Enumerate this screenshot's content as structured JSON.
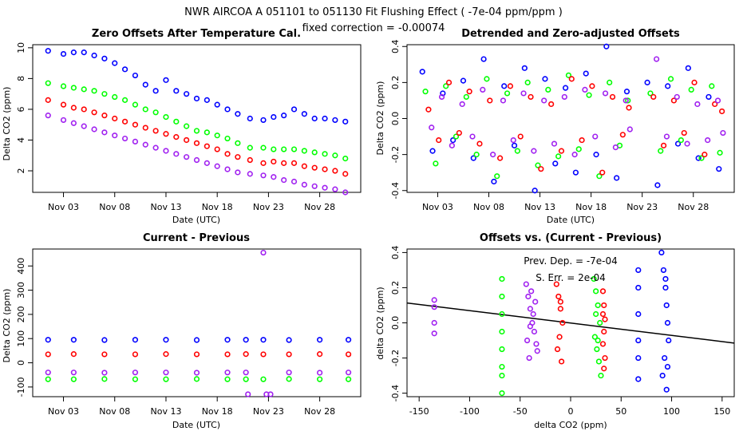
{
  "suptitle": "NWR   AIRCOA A   051101 to 051130   Fit Flushing Effect ( -7e-04 ppm/ppm )",
  "subtitle": "fixed correction = -0.00074",
  "series_names": [
    "blue",
    "green",
    "red",
    "purple"
  ],
  "colors": {
    "blue": "#0000ff",
    "green": "#00ff00",
    "red": "#ff0000",
    "purple": "#a020f0",
    "axis": "#000000",
    "fit": "#000000"
  },
  "chart_data": [
    {
      "id": "p1",
      "type": "scatter",
      "title": "Zero Offsets After Temperature Cal.",
      "xlabel": "Date (UTC)",
      "ylabel": "Delta CO2 (ppm)",
      "xlim": [
        0,
        32
      ],
      "ylim": [
        0.6,
        10.2
      ],
      "xticks": [
        {
          "v": 3,
          "label": "Nov 03"
        },
        {
          "v": 8,
          "label": "Nov 08"
        },
        {
          "v": 13,
          "label": "Nov 13"
        },
        {
          "v": 18,
          "label": "Nov 18"
        },
        {
          "v": 23,
          "label": "Nov 23"
        },
        {
          "v": 28,
          "label": "Nov 28"
        }
      ],
      "yticks": [
        {
          "v": 2,
          "label": "2"
        },
        {
          "v": 4,
          "label": "4"
        },
        {
          "v": 6,
          "label": "6"
        },
        {
          "v": 8,
          "label": "8"
        },
        {
          "v": 10,
          "label": "10"
        }
      ],
      "series": [
        {
          "name": "blue",
          "x": [
            1.5,
            3,
            4,
            5,
            6,
            7,
            8,
            9,
            10,
            11,
            12,
            13,
            14,
            15,
            16,
            17,
            18,
            19,
            20,
            21.2,
            22.5,
            23.5,
            24.5,
            25.5,
            26.5,
            27.5,
            28.5,
            29.5,
            30.5
          ],
          "y": [
            9.8,
            9.6,
            9.7,
            9.7,
            9.5,
            9.3,
            9.0,
            8.6,
            8.2,
            7.6,
            7.2,
            7.9,
            7.2,
            7.0,
            6.7,
            6.6,
            6.3,
            6.0,
            5.7,
            5.4,
            5.3,
            5.5,
            5.6,
            6.0,
            5.7,
            5.4,
            5.4,
            5.3,
            5.2
          ]
        },
        {
          "name": "green",
          "x": [
            1.5,
            3,
            4,
            5,
            6,
            7,
            8,
            9,
            10,
            11,
            12,
            13,
            14,
            15,
            16,
            17,
            18,
            19,
            20,
            21.2,
            22.5,
            23.5,
            24.5,
            25.5,
            26.5,
            27.5,
            28.5,
            29.5,
            30.5
          ],
          "y": [
            7.7,
            7.5,
            7.4,
            7.3,
            7.2,
            7.0,
            6.8,
            6.6,
            6.3,
            6.0,
            5.8,
            5.5,
            5.2,
            4.9,
            4.6,
            4.5,
            4.3,
            4.1,
            3.8,
            3.5,
            3.5,
            3.4,
            3.4,
            3.4,
            3.3,
            3.2,
            3.1,
            3.0,
            2.8
          ]
        },
        {
          "name": "red",
          "x": [
            1.5,
            3,
            4,
            5,
            6,
            7,
            8,
            9,
            10,
            11,
            12,
            13,
            14,
            15,
            16,
            17,
            18,
            19,
            20,
            21.2,
            22.5,
            23.5,
            24.5,
            25.5,
            26.5,
            27.5,
            28.5,
            29.5,
            30.5
          ],
          "y": [
            6.6,
            6.3,
            6.1,
            6.0,
            5.8,
            5.6,
            5.4,
            5.2,
            5.0,
            4.8,
            4.6,
            4.4,
            4.2,
            4.0,
            3.8,
            3.6,
            3.4,
            3.1,
            2.9,
            2.7,
            2.5,
            2.6,
            2.5,
            2.5,
            2.3,
            2.2,
            2.1,
            2.0,
            1.8
          ]
        },
        {
          "name": "purple",
          "x": [
            1.5,
            3,
            4,
            5,
            6,
            7,
            8,
            9,
            10,
            11,
            12,
            13,
            14,
            15,
            16,
            17,
            18,
            19,
            20,
            21.2,
            22.5,
            23.5,
            24.5,
            25.5,
            26.5,
            27.5,
            28.5,
            29.5,
            30.5
          ],
          "y": [
            5.6,
            5.3,
            5.1,
            4.9,
            4.7,
            4.5,
            4.3,
            4.1,
            3.9,
            3.7,
            3.5,
            3.3,
            3.1,
            2.9,
            2.7,
            2.5,
            2.3,
            2.1,
            1.9,
            1.8,
            1.7,
            1.6,
            1.4,
            1.3,
            1.1,
            1.0,
            0.9,
            0.8,
            0.6
          ]
        }
      ]
    },
    {
      "id": "p2",
      "type": "scatter",
      "title": "Detrended and Zero-adjusted Offsets",
      "xlabel": "Date (UTC)",
      "ylabel": "Delta CO2 (ppm)",
      "xlim": [
        0,
        32
      ],
      "ylim": [
        -0.41,
        0.41
      ],
      "xticks": [
        {
          "v": 3,
          "label": "Nov 03"
        },
        {
          "v": 8,
          "label": "Nov 08"
        },
        {
          "v": 13,
          "label": "Nov 13"
        },
        {
          "v": 18,
          "label": "Nov 18"
        },
        {
          "v": 23,
          "label": "Nov 23"
        },
        {
          "v": 28,
          "label": "Nov 28"
        }
      ],
      "yticks": [
        {
          "v": -0.4,
          "label": "-0.4"
        },
        {
          "v": -0.2,
          "label": "-0.2"
        },
        {
          "v": 0,
          "label": "0.0"
        },
        {
          "v": 0.2,
          "label": "0.2"
        },
        {
          "v": 0.4,
          "label": "0.4"
        }
      ],
      "series": [
        {
          "name": "blue",
          "x": [
            1.5,
            2.5,
            3.5,
            4.5,
            5.5,
            6.5,
            7.5,
            8.5,
            9.5,
            10.5,
            11.5,
            12.5,
            13.5,
            14.5,
            15.5,
            16.5,
            17.5,
            18.5,
            19.5,
            20.5,
            21.5,
            23.5,
            24.5,
            25.5,
            26.5,
            27.5,
            28.5,
            29.5,
            30.5
          ],
          "y": [
            0.26,
            -0.18,
            0.14,
            -0.12,
            0.21,
            -0.22,
            0.33,
            -0.35,
            0.18,
            -0.15,
            0.28,
            -0.4,
            0.22,
            -0.25,
            0.17,
            -0.3,
            0.25,
            -0.2,
            0.4,
            -0.33,
            0.15,
            0.2,
            -0.37,
            0.18,
            -0.14,
            0.28,
            -0.22,
            0.12,
            -0.28
          ]
        },
        {
          "name": "green",
          "x": [
            1.8,
            2.8,
            3.8,
            4.8,
            5.8,
            6.8,
            7.8,
            8.8,
            9.8,
            10.8,
            11.8,
            12.8,
            13.8,
            14.8,
            15.8,
            16.8,
            17.8,
            18.8,
            19.8,
            20.8,
            21.6,
            23.8,
            24.8,
            25.8,
            26.8,
            27.8,
            28.8,
            29.8,
            30.6
          ],
          "y": [
            0.15,
            -0.25,
            0.18,
            -0.1,
            0.12,
            -0.2,
            0.22,
            -0.32,
            0.14,
            -0.18,
            0.2,
            -0.26,
            0.16,
            -0.21,
            0.24,
            -0.17,
            0.13,
            -0.32,
            0.2,
            -0.15,
            0.1,
            0.14,
            -0.18,
            0.22,
            -0.12,
            0.16,
            -0.22,
            0.18,
            -0.19
          ]
        },
        {
          "name": "red",
          "x": [
            2.1,
            3.1,
            4.1,
            5.1,
            6.1,
            7.1,
            8.1,
            9.1,
            10.1,
            11.1,
            12.1,
            13.1,
            14.1,
            15.1,
            16.1,
            17.1,
            18.1,
            19.1,
            20.1,
            21.1,
            21.7,
            24.1,
            25.1,
            26.1,
            27.1,
            28.1,
            29.1,
            30.1,
            30.8
          ],
          "y": [
            0.05,
            -0.12,
            0.2,
            -0.08,
            0.15,
            -0.14,
            0.1,
            -0.22,
            0.18,
            -0.1,
            0.12,
            -0.28,
            0.08,
            -0.18,
            0.22,
            -0.12,
            0.18,
            -0.3,
            0.12,
            -0.09,
            0.06,
            0.12,
            -0.15,
            0.1,
            -0.08,
            0.2,
            -0.2,
            0.08,
            0.04
          ]
        },
        {
          "name": "purple",
          "x": [
            2.4,
            3.4,
            4.4,
            5.4,
            6.4,
            7.4,
            8.4,
            9.4,
            10.4,
            11.4,
            12.4,
            13.4,
            14.4,
            15.4,
            16.4,
            17.4,
            18.4,
            19.4,
            20.4,
            21.4,
            21.8,
            24.4,
            25.4,
            26.4,
            27.4,
            28.4,
            29.4,
            30.4,
            30.9
          ],
          "y": [
            -0.05,
            0.12,
            -0.15,
            0.08,
            -0.1,
            0.16,
            -0.2,
            0.1,
            -0.12,
            0.14,
            -0.18,
            0.1,
            -0.14,
            0.12,
            -0.2,
            0.16,
            -0.1,
            0.14,
            -0.16,
            0.1,
            -0.06,
            0.33,
            -0.1,
            0.12,
            -0.14,
            0.08,
            -0.12,
            0.1,
            -0.08
          ]
        }
      ]
    },
    {
      "id": "p3",
      "type": "scatter",
      "title": "Current - Previous",
      "xlabel": "Date (UTC)",
      "ylabel": "Delta CO2 (ppm)",
      "xlim": [
        0,
        32
      ],
      "ylim": [
        -140,
        470
      ],
      "xticks": [
        {
          "v": 3,
          "label": "Nov 03"
        },
        {
          "v": 8,
          "label": "Nov 08"
        },
        {
          "v": 13,
          "label": "Nov 13"
        },
        {
          "v": 18,
          "label": "Nov 18"
        },
        {
          "v": 23,
          "label": "Nov 23"
        },
        {
          "v": 28,
          "label": "Nov 28"
        }
      ],
      "yticks": [
        {
          "v": -100,
          "label": "-100"
        },
        {
          "v": 0,
          "label": "0"
        },
        {
          "v": 100,
          "label": "100"
        },
        {
          "v": 200,
          "label": "200"
        },
        {
          "v": 300,
          "label": "300"
        },
        {
          "v": 400,
          "label": "400"
        }
      ],
      "series": [
        {
          "name": "blue",
          "x": [
            1.5,
            4,
            7,
            10,
            13,
            16,
            19,
            20.8,
            22.5,
            25,
            28,
            30.8
          ],
          "y": [
            95,
            95,
            94,
            95,
            95,
            94,
            95,
            95,
            95,
            94,
            95,
            95
          ]
        },
        {
          "name": "green",
          "x": [
            1.5,
            4,
            7,
            10,
            13,
            16,
            19,
            20.8,
            22.5,
            25,
            28,
            30.8
          ],
          "y": [
            -68,
            -68,
            -67,
            -68,
            -68,
            -67,
            -68,
            -68,
            -68,
            -67,
            -68,
            -68
          ]
        },
        {
          "name": "red",
          "x": [
            1.5,
            4,
            7,
            10,
            13,
            16,
            19,
            20.8,
            22.5,
            25,
            28,
            30.8
          ],
          "y": [
            35,
            36,
            35,
            35,
            36,
            35,
            35,
            36,
            35,
            35,
            36,
            35
          ]
        },
        {
          "name": "purple",
          "x": [
            1.5,
            4,
            7,
            10,
            13,
            16,
            19,
            20.8,
            21,
            22.5,
            22.8,
            23.2,
            25,
            28,
            30.8
          ],
          "y": [
            -40,
            -40,
            -41,
            -40,
            -40,
            -41,
            -40,
            -40,
            -130,
            455,
            -130,
            -130,
            -40,
            -41,
            -40
          ]
        }
      ]
    },
    {
      "id": "p4",
      "type": "scatter",
      "title": "Offsets vs. (Current - Previous)",
      "xlabel": "delta CO2 (ppm)",
      "ylabel": "delta CO2 (ppm)",
      "xlim": [
        -162,
        162
      ],
      "ylim": [
        -0.42,
        0.42
      ],
      "xticks": [
        {
          "v": -150,
          "label": "-150"
        },
        {
          "v": -100,
          "label": "-100"
        },
        {
          "v": -50,
          "label": "-50"
        },
        {
          "v": 0,
          "label": "0"
        },
        {
          "v": 50,
          "label": "50"
        },
        {
          "v": 100,
          "label": "100"
        },
        {
          "v": 150,
          "label": "150"
        }
      ],
      "yticks": [
        {
          "v": -0.4,
          "label": "-0.4"
        },
        {
          "v": -0.2,
          "label": "-0.2"
        },
        {
          "v": 0,
          "label": "0.0"
        },
        {
          "v": 0.2,
          "label": "0.2"
        },
        {
          "v": 0.4,
          "label": "0.4"
        }
      ],
      "annotations": [
        "Prev. Dep. =  -7e-04",
        "S. Err. =  2e-04"
      ],
      "fit_line": {
        "x": [
          -162,
          162
        ],
        "y": [
          0.113,
          -0.115
        ],
        "slope": -0.0007
      },
      "series": [
        {
          "name": "blue",
          "x": [
            67,
            67,
            67,
            67,
            67,
            67,
            90,
            92,
            94,
            95,
            96,
            97,
            93,
            91,
            95,
            94,
            96
          ],
          "y": [
            0.3,
            0.2,
            0.05,
            -0.1,
            -0.2,
            -0.32,
            0.4,
            0.3,
            0.2,
            0.1,
            0.0,
            -0.1,
            -0.2,
            -0.3,
            -0.38,
            0.25,
            -0.25
          ]
        },
        {
          "name": "green",
          "x": [
            -68,
            -68,
            -68,
            -68,
            -68,
            -68,
            -68,
            -68,
            23,
            25,
            27,
            29,
            24,
            26,
            28,
            30,
            25,
            27
          ],
          "y": [
            0.25,
            0.15,
            0.05,
            -0.05,
            -0.15,
            -0.25,
            -0.3,
            -0.4,
            0.25,
            0.18,
            0.1,
            0.0,
            -0.08,
            -0.15,
            -0.22,
            -0.3,
            0.05,
            -0.1
          ]
        },
        {
          "name": "red",
          "x": [
            -14,
            -12,
            -10,
            -8,
            -11,
            -13,
            -9,
            -10,
            32,
            33,
            34,
            33,
            32,
            34,
            33,
            32
          ],
          "y": [
            0.22,
            0.15,
            0.08,
            0.0,
            -0.08,
            -0.15,
            -0.22,
            0.12,
            0.18,
            0.1,
            0.02,
            -0.05,
            -0.12,
            -0.2,
            -0.26,
            0.05
          ]
        },
        {
          "name": "purple",
          "x": [
            -135,
            -135,
            -135,
            -135,
            -44,
            -42,
            -40,
            -38,
            -36,
            -34,
            -41,
            -39,
            -37,
            -43,
            -35,
            -33,
            -40
          ],
          "y": [
            0.13,
            0.09,
            0.0,
            -0.06,
            0.22,
            0.15,
            0.08,
            0.0,
            -0.05,
            -0.12,
            -0.2,
            0.18,
            0.05,
            -0.1,
            0.12,
            -0.16,
            -0.02
          ]
        }
      ]
    }
  ]
}
